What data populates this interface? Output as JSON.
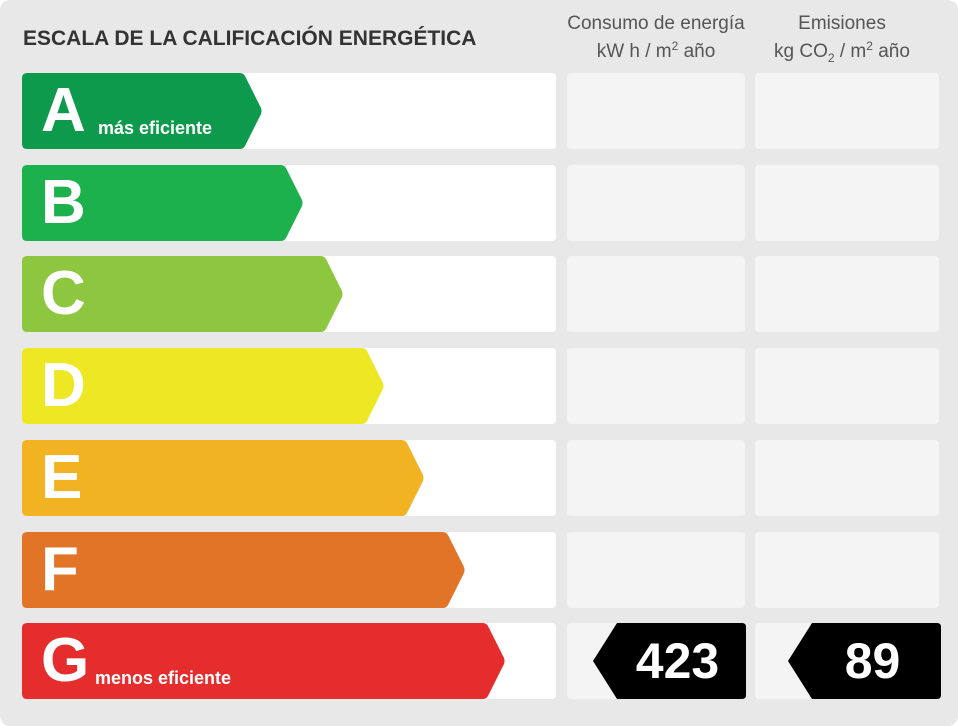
{
  "title": "ESCALA DE LA CALIFICACIÓN ENERGÉTICA",
  "columns": {
    "consumo": {
      "line1": "Consumo de energía",
      "unit_a": "kW h  / m",
      "unit_sup": "2",
      "unit_b": " año"
    },
    "emisiones": {
      "line1": "Emisiones",
      "unit_a": "kg CO",
      "unit_sub": "2",
      "unit_mid": "  / m",
      "unit_sup": "2",
      "unit_b": " año"
    }
  },
  "grades": [
    {
      "letter": "A",
      "note": "más eficiente",
      "color": "#0e9a4c"
    },
    {
      "letter": "B",
      "note": "",
      "color": "#1db14e"
    },
    {
      "letter": "C",
      "note": "",
      "color": "#8dc63f"
    },
    {
      "letter": "D",
      "note": "",
      "color": "#ede724"
    },
    {
      "letter": "E",
      "note": "",
      "color": "#f2b322"
    },
    {
      "letter": "F",
      "note": "",
      "color": "#e27428"
    },
    {
      "letter": "G",
      "note": "menos eficiente",
      "color": "#e52d2d"
    }
  ],
  "rating": {
    "grade": "G",
    "consumo_value": "423",
    "emisiones_value": "89",
    "tag_color": "#000000"
  }
}
